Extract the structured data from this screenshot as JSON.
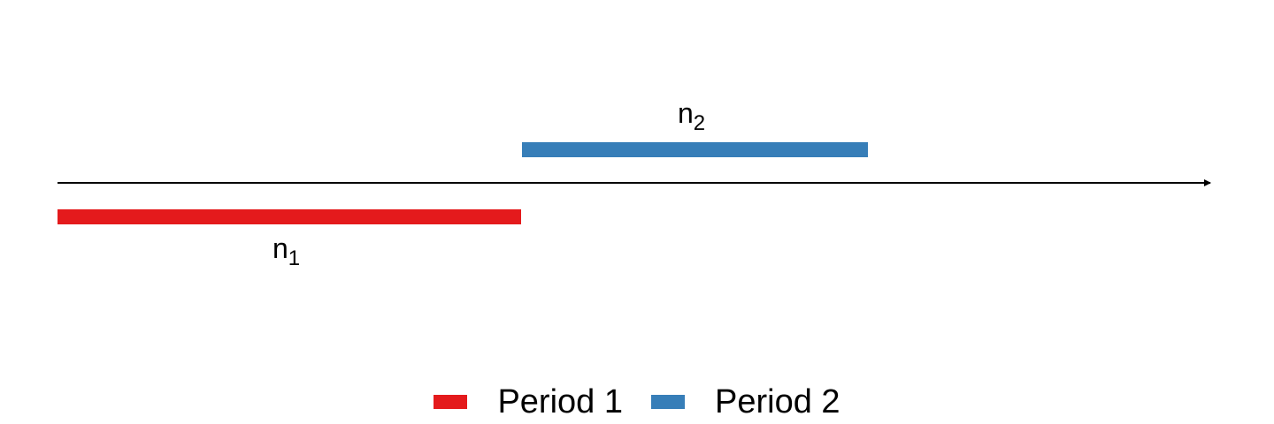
{
  "timeline": {
    "line_color": "#000000"
  },
  "segments": [
    {
      "id": "period-1",
      "label_main": "n",
      "label_sub": "1",
      "color": "#E41A1C",
      "start_fraction": 0.0,
      "end_fraction": 0.4
    },
    {
      "id": "period-2",
      "label_main": "n",
      "label_sub": "2",
      "color": "#377EB8",
      "start_fraction": 0.4,
      "end_fraction": 0.7
    }
  ],
  "legend": {
    "items": [
      {
        "label": "Period 1",
        "color": "#E41A1C"
      },
      {
        "label": "Period 2",
        "color": "#377EB8"
      }
    ]
  }
}
